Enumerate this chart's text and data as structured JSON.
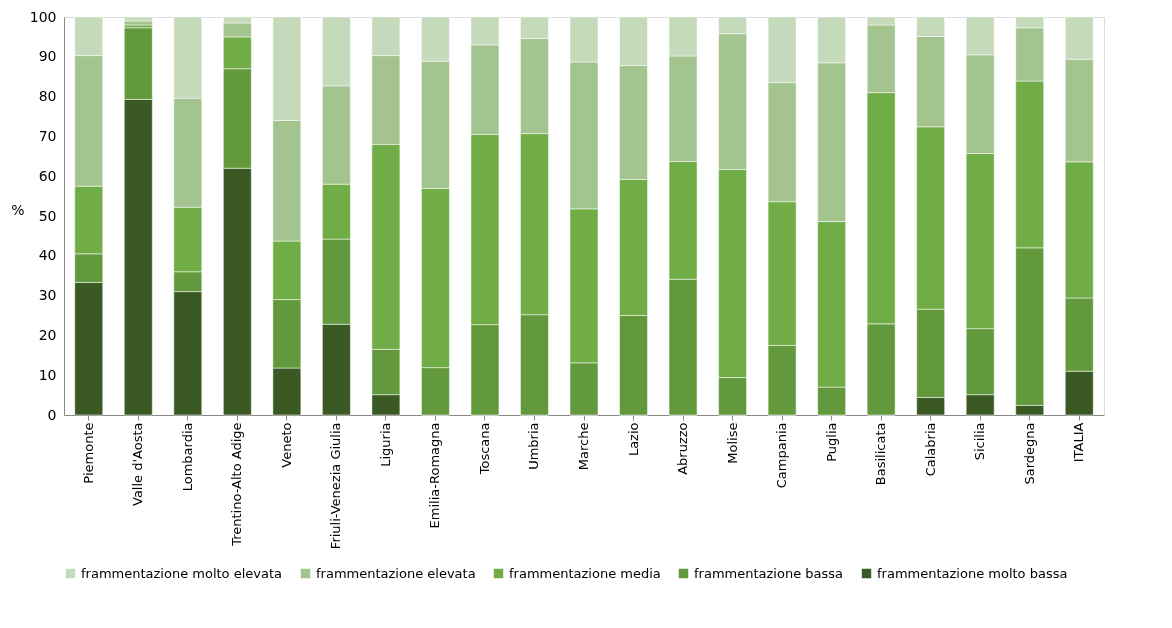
{
  "chart_data": {
    "type": "bar",
    "stacked": true,
    "ylabel": "%",
    "categories": [
      "Piemonte",
      "Valle d'Aosta",
      "Lombardia",
      "Trentino-Alto Adige",
      "Veneto",
      "Friuli-Venezia Giulia",
      "Liguria",
      "Emilia-Romagna",
      "Toscana",
      "Umbria",
      "Marche",
      "Lazio",
      "Abruzzo",
      "Molise",
      "Campania",
      "Puglia",
      "Basilicata",
      "Calabria",
      "Sicilia",
      "Sardegna",
      "ITALIA"
    ],
    "series": [
      {
        "name": "frammentazione molto bassa",
        "color": "#3b5a23",
        "values": [
          33.3,
          79.3,
          31.0,
          62.0,
          11.8,
          22.8,
          5.1,
          0,
          0,
          0,
          0,
          0,
          0,
          0,
          0,
          0,
          0,
          4.4,
          5.1,
          2.4,
          11.0
        ]
      },
      {
        "name": "frammentazione bassa",
        "color": "#63993d",
        "values": [
          7.2,
          18.0,
          5.0,
          25.0,
          17.2,
          21.4,
          11.4,
          11.9,
          22.7,
          25.2,
          13.1,
          25.0,
          34.1,
          9.4,
          17.5,
          7.0,
          22.9,
          22.2,
          16.6,
          39.6,
          18.4
        ]
      },
      {
        "name": "frammentazione media",
        "color": "#70ad47",
        "values": [
          17.0,
          0.7,
          16.2,
          8.0,
          14.7,
          13.8,
          51.5,
          45.0,
          47.8,
          45.5,
          38.7,
          34.2,
          29.6,
          52.3,
          36.1,
          41.6,
          58.1,
          45.8,
          44.0,
          41.9,
          34.2
        ]
      },
      {
        "name": "frammentazione elevata",
        "color": "#a3c48f",
        "values": [
          32.8,
          1.0,
          27.4,
          3.5,
          30.3,
          24.7,
          22.3,
          32.0,
          22.5,
          23.9,
          36.9,
          28.6,
          26.5,
          34.1,
          29.9,
          39.9,
          17.0,
          22.7,
          24.8,
          13.4,
          25.8
        ]
      },
      {
        "name": "frammentazione molto elevata",
        "color": "#c5d9bb",
        "values": [
          9.7,
          1.0,
          20.4,
          1.5,
          26.0,
          17.3,
          9.7,
          11.1,
          7.0,
          5.4,
          11.3,
          12.2,
          9.8,
          4.2,
          16.5,
          11.5,
          2.0,
          4.9,
          9.5,
          2.7,
          10.6
        ]
      }
    ],
    "ylim": [
      0,
      100
    ],
    "yticks": [
      0,
      10,
      20,
      30,
      40,
      50,
      60,
      70,
      80,
      90,
      100
    ],
    "grid": false,
    "legend": "bottom"
  }
}
